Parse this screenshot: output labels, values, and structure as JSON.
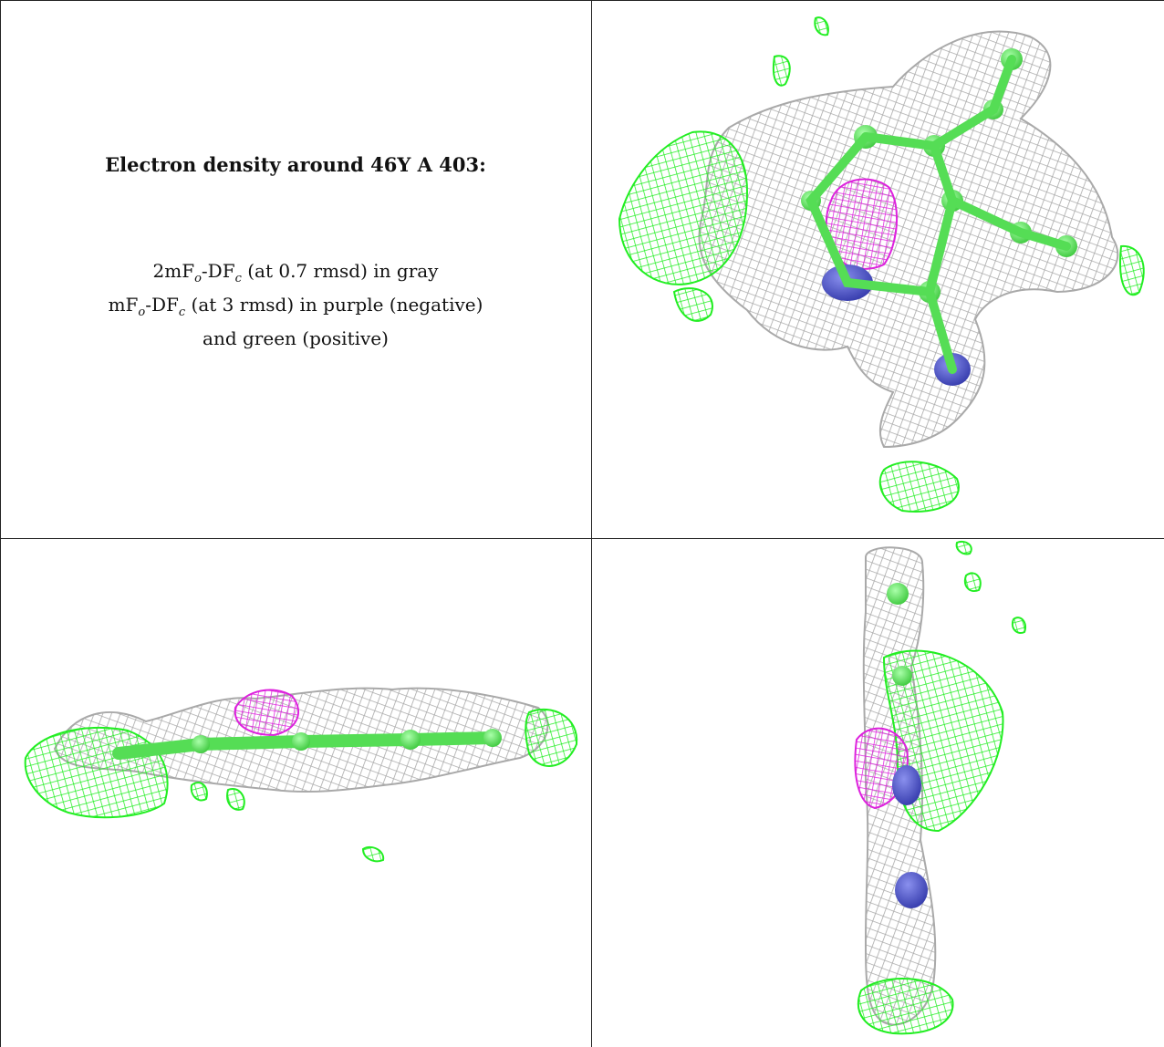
{
  "caption": {
    "title": "Electron density around 46Y A 403:",
    "line1_a": "2mF",
    "line1_sub1": "o",
    "line1_b": "-DF",
    "line1_sub2": "c",
    "line1_c": " (at 0.7 rmsd) in gray",
    "line2_a": "mF",
    "line2_sub1": "o",
    "line2_b": "-DF",
    "line2_sub2": "c",
    "line2_c": " (at 3 rmsd) in purple (negative)",
    "line3": "and green (positive)"
  },
  "colors": {
    "gray_mesh": "#b4b4b4",
    "green_mesh": "#22ee22",
    "purple_mesh": "#dd22dd",
    "nitrogen_atom": "#4a50c8",
    "carbon_atom": "#66ee66",
    "grid_line": "#222222"
  },
  "panels": [
    {
      "id": "top-right",
      "view": "face-on"
    },
    {
      "id": "bottom-left",
      "view": "edge-on horizontal"
    },
    {
      "id": "bottom-right",
      "view": "edge-on vertical"
    }
  ]
}
